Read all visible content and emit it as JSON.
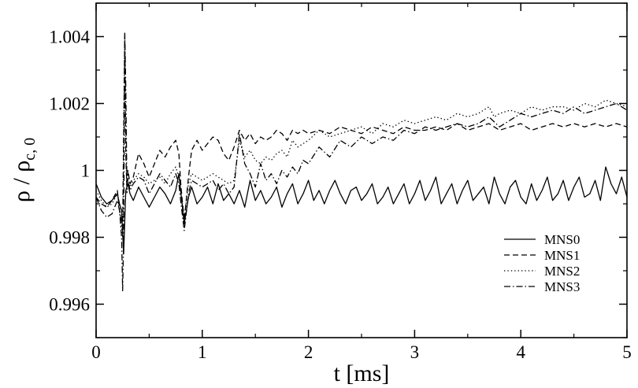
{
  "chart_data": {
    "type": "line",
    "title": "",
    "xlabel": "t [ms]",
    "ylabel_main": "ρ / ρ",
    "ylabel_sub": "c, 0",
    "xlim": [
      0,
      5
    ],
    "ylim": [
      0.995,
      1.005
    ],
    "x_ticks": [
      0,
      1,
      2,
      3,
      4,
      5
    ],
    "x_tick_labels": [
      "0",
      "1",
      "2",
      "3",
      "4",
      "5"
    ],
    "y_ticks": [
      0.996,
      0.998,
      1.0,
      1.002,
      1.004
    ],
    "y_tick_labels": [
      "0.996",
      "0.998",
      "1",
      "1.002",
      "1.004"
    ],
    "grid": false,
    "legend_position": "bottom-right",
    "series": [
      {
        "name": "MNS0",
        "dash": "solid",
        "x": [
          0,
          0.05,
          0.1,
          0.15,
          0.2,
          0.22,
          0.24,
          0.26,
          0.27,
          0.28,
          0.3,
          0.32,
          0.35,
          0.4,
          0.45,
          0.5,
          0.55,
          0.6,
          0.65,
          0.7,
          0.75,
          0.78,
          0.8,
          0.83,
          0.87,
          0.9,
          0.95,
          1.0,
          1.05,
          1.1,
          1.15,
          1.2,
          1.25,
          1.3,
          1.35,
          1.4,
          1.45,
          1.5,
          1.55,
          1.6,
          1.65,
          1.7,
          1.75,
          1.8,
          1.85,
          1.9,
          1.95,
          2.0,
          2.05,
          2.1,
          2.15,
          2.2,
          2.25,
          2.3,
          2.35,
          2.4,
          2.45,
          2.5,
          2.55,
          2.6,
          2.65,
          2.7,
          2.75,
          2.8,
          2.85,
          2.9,
          2.95,
          3.0,
          3.05,
          3.1,
          3.15,
          3.2,
          3.25,
          3.3,
          3.35,
          3.4,
          3.45,
          3.5,
          3.55,
          3.6,
          3.65,
          3.7,
          3.75,
          3.8,
          3.85,
          3.9,
          3.95,
          4.0,
          4.05,
          4.1,
          4.15,
          4.2,
          4.25,
          4.3,
          4.35,
          4.4,
          4.45,
          4.5,
          4.55,
          4.6,
          4.65,
          4.7,
          4.75,
          4.8,
          4.85,
          4.9,
          4.95,
          5.0
        ],
        "y": [
          0.9996,
          0.9992,
          0.999,
          0.9991,
          0.9993,
          0.999,
          0.9988,
          0.9975,
          0.9985,
          0.9994,
          0.9996,
          0.9993,
          0.9991,
          0.9995,
          0.9992,
          0.9989,
          0.9992,
          0.9995,
          0.9993,
          0.999,
          0.9994,
          0.9999,
          0.9993,
          0.9984,
          0.9992,
          0.9995,
          0.999,
          0.9992,
          0.9995,
          0.999,
          0.9996,
          0.9991,
          0.9993,
          0.999,
          0.9994,
          0.9989,
          0.9997,
          0.9991,
          0.9994,
          0.999,
          0.9992,
          0.9995,
          0.9989,
          0.9993,
          0.9996,
          0.999,
          0.9993,
          0.9997,
          0.9991,
          0.9994,
          0.999,
          0.9994,
          0.9997,
          0.9993,
          0.999,
          0.9994,
          0.9995,
          0.9991,
          0.9993,
          0.9996,
          0.999,
          0.9992,
          0.9995,
          0.999,
          0.9993,
          0.9996,
          0.999,
          0.9993,
          0.9997,
          0.9991,
          0.9994,
          0.9998,
          0.999,
          0.9993,
          0.9996,
          0.999,
          0.9994,
          0.9997,
          0.9991,
          0.9993,
          0.9995,
          0.999,
          0.9998,
          0.9993,
          0.999,
          0.9995,
          0.9997,
          0.9992,
          0.999,
          0.9996,
          0.9991,
          0.9994,
          0.9998,
          0.9991,
          0.9993,
          0.9997,
          0.9991,
          0.9995,
          0.9998,
          0.9992,
          0.9993,
          0.9997,
          0.9991,
          1.0001,
          0.9996,
          0.9993,
          0.9998,
          0.9992
        ]
      },
      {
        "name": "MNS1",
        "dash": "dashed",
        "x": [
          0,
          0.05,
          0.1,
          0.15,
          0.2,
          0.22,
          0.25,
          0.27,
          0.28,
          0.29,
          0.3,
          0.32,
          0.35,
          0.4,
          0.45,
          0.5,
          0.55,
          0.6,
          0.65,
          0.7,
          0.75,
          0.78,
          0.8,
          0.83,
          0.87,
          0.9,
          0.95,
          1.0,
          1.05,
          1.1,
          1.15,
          1.2,
          1.25,
          1.3,
          1.35,
          1.4,
          1.45,
          1.5,
          1.55,
          1.6,
          1.65,
          1.7,
          1.75,
          1.8,
          1.85,
          1.9,
          1.95,
          2.0,
          2.1,
          2.2,
          2.3,
          2.4,
          2.5,
          2.6,
          2.7,
          2.8,
          2.9,
          3.0,
          3.1,
          3.2,
          3.3,
          3.4,
          3.5,
          3.6,
          3.7,
          3.8,
          3.9,
          4.0,
          4.1,
          4.2,
          4.3,
          4.4,
          4.5,
          4.6,
          4.7,
          4.8,
          4.9,
          5.0
        ],
        "y": [
          0.9992,
          0.999,
          0.9989,
          0.9991,
          0.9994,
          0.9988,
          0.9983,
          1.004,
          1.0005,
          0.9995,
          1.0,
          0.9996,
          0.9998,
          1.0005,
          1.0002,
          0.9998,
          1.0002,
          1.0006,
          1.0004,
          1.0007,
          1.0009,
          1.0005,
          0.9995,
          0.9985,
          0.9998,
          1.0006,
          1.0009,
          1.0006,
          1.0008,
          1.001,
          1.0009,
          1.0005,
          1.0003,
          1.0007,
          1.0012,
          1.0009,
          1.0011,
          1.0008,
          1.001,
          1.0009,
          1.001,
          1.0012,
          1.0011,
          1.0009,
          1.0012,
          1.0011,
          1.0012,
          1.0011,
          1.0012,
          1.0011,
          1.0013,
          1.0012,
          1.0011,
          1.0013,
          1.0012,
          1.0011,
          1.0013,
          1.0012,
          1.0012,
          1.0013,
          1.0012,
          1.0014,
          1.0012,
          1.0013,
          1.0014,
          1.0012,
          1.0013,
          1.0014,
          1.0012,
          1.0013,
          1.0014,
          1.0013,
          1.0014,
          1.0013,
          1.0014,
          1.0013,
          1.0014,
          1.0013
        ]
      },
      {
        "name": "MNS2",
        "dash": "dotted",
        "x": [
          0,
          0.05,
          0.1,
          0.15,
          0.2,
          0.22,
          0.25,
          0.27,
          0.28,
          0.29,
          0.3,
          0.32,
          0.35,
          0.4,
          0.45,
          0.5,
          0.55,
          0.6,
          0.65,
          0.7,
          0.75,
          0.78,
          0.8,
          0.83,
          0.87,
          0.9,
          0.95,
          1.0,
          1.05,
          1.1,
          1.15,
          1.2,
          1.25,
          1.3,
          1.35,
          1.4,
          1.45,
          1.5,
          1.55,
          1.6,
          1.65,
          1.7,
          1.75,
          1.8,
          1.85,
          1.9,
          1.95,
          2.0,
          2.1,
          2.2,
          2.3,
          2.4,
          2.5,
          2.6,
          2.7,
          2.8,
          2.9,
          3.0,
          3.1,
          3.2,
          3.3,
          3.4,
          3.5,
          3.6,
          3.7,
          3.75,
          3.8,
          3.9,
          4.0,
          4.1,
          4.2,
          4.3,
          4.4,
          4.5,
          4.6,
          4.7,
          4.8,
          4.9,
          5.0
        ],
        "y": [
          0.9994,
          0.9991,
          0.9989,
          0.999,
          0.9993,
          0.9989,
          0.998,
          1.0041,
          1.0008,
          0.9993,
          0.9998,
          0.9995,
          0.9997,
          0.9999,
          0.9998,
          0.9996,
          0.9997,
          0.9998,
          0.9996,
          0.9999,
          1.0001,
          0.9998,
          0.9993,
          0.9986,
          0.9996,
          0.9999,
          0.9998,
          0.9997,
          0.9998,
          0.9999,
          0.9998,
          0.9997,
          0.9996,
          0.9997,
          1.0009,
          1.0004,
          1.0006,
          1.0003,
          1.0002,
          1.0004,
          1.0003,
          1.0005,
          1.0006,
          1.0004,
          1.0009,
          1.0007,
          1.0008,
          1.0009,
          1.0012,
          1.001,
          1.0011,
          1.0012,
          1.0013,
          1.0011,
          1.0014,
          1.0013,
          1.0015,
          1.0014,
          1.0015,
          1.0016,
          1.0015,
          1.0017,
          1.0016,
          1.0017,
          1.0019,
          1.0016,
          1.0017,
          1.0018,
          1.0017,
          1.0019,
          1.0018,
          1.0019,
          1.0019,
          1.0018,
          1.002,
          1.0019,
          1.0021,
          1.002,
          1.0019
        ]
      },
      {
        "name": "MNS3",
        "dash": "dashdot",
        "x": [
          0,
          0.05,
          0.1,
          0.15,
          0.2,
          0.22,
          0.24,
          0.25,
          0.26,
          0.27,
          0.28,
          0.29,
          0.3,
          0.32,
          0.35,
          0.4,
          0.45,
          0.5,
          0.55,
          0.6,
          0.65,
          0.7,
          0.75,
          0.78,
          0.8,
          0.83,
          0.87,
          0.9,
          0.95,
          1.0,
          1.05,
          1.1,
          1.15,
          1.2,
          1.25,
          1.3,
          1.35,
          1.4,
          1.45,
          1.5,
          1.55,
          1.6,
          1.65,
          1.7,
          1.75,
          1.8,
          1.85,
          1.9,
          1.95,
          2.0,
          2.1,
          2.2,
          2.3,
          2.4,
          2.5,
          2.6,
          2.7,
          2.8,
          2.9,
          3.0,
          3.1,
          3.2,
          3.3,
          3.4,
          3.5,
          3.6,
          3.7,
          3.8,
          3.9,
          4.0,
          4.1,
          4.2,
          4.3,
          4.4,
          4.5,
          4.6,
          4.7,
          4.8,
          4.9,
          5.0
        ],
        "y": [
          0.9992,
          0.9988,
          0.9986,
          0.9987,
          0.9991,
          0.9988,
          0.998,
          0.9964,
          0.998,
          1.0041,
          1.0025,
          0.9996,
          0.9997,
          0.9994,
          0.9996,
          0.9998,
          0.9997,
          0.9993,
          0.9996,
          0.9999,
          0.9997,
          0.9995,
          0.9999,
          0.9996,
          0.999,
          0.9982,
          0.9993,
          0.9997,
          0.9996,
          0.9995,
          0.9996,
          0.9997,
          0.9994,
          0.9996,
          0.9993,
          0.9995,
          1.0011,
          1.0002,
          0.9999,
          0.9995,
          1.0002,
          0.9997,
          0.9999,
          0.9996,
          1.0,
          0.9998,
          1.0001,
          0.9999,
          1.0003,
          1.0002,
          1.0007,
          1.0004,
          1.0009,
          1.0007,
          1.001,
          1.0008,
          1.001,
          1.0009,
          1.0012,
          1.0011,
          1.0013,
          1.0012,
          1.0013,
          1.0014,
          1.0013,
          1.0014,
          1.0016,
          1.0013,
          1.0015,
          1.0017,
          1.0016,
          1.0017,
          1.0018,
          1.0017,
          1.0019,
          1.0017,
          1.0018,
          1.0019,
          1.002,
          1.0018
        ]
      }
    ]
  }
}
